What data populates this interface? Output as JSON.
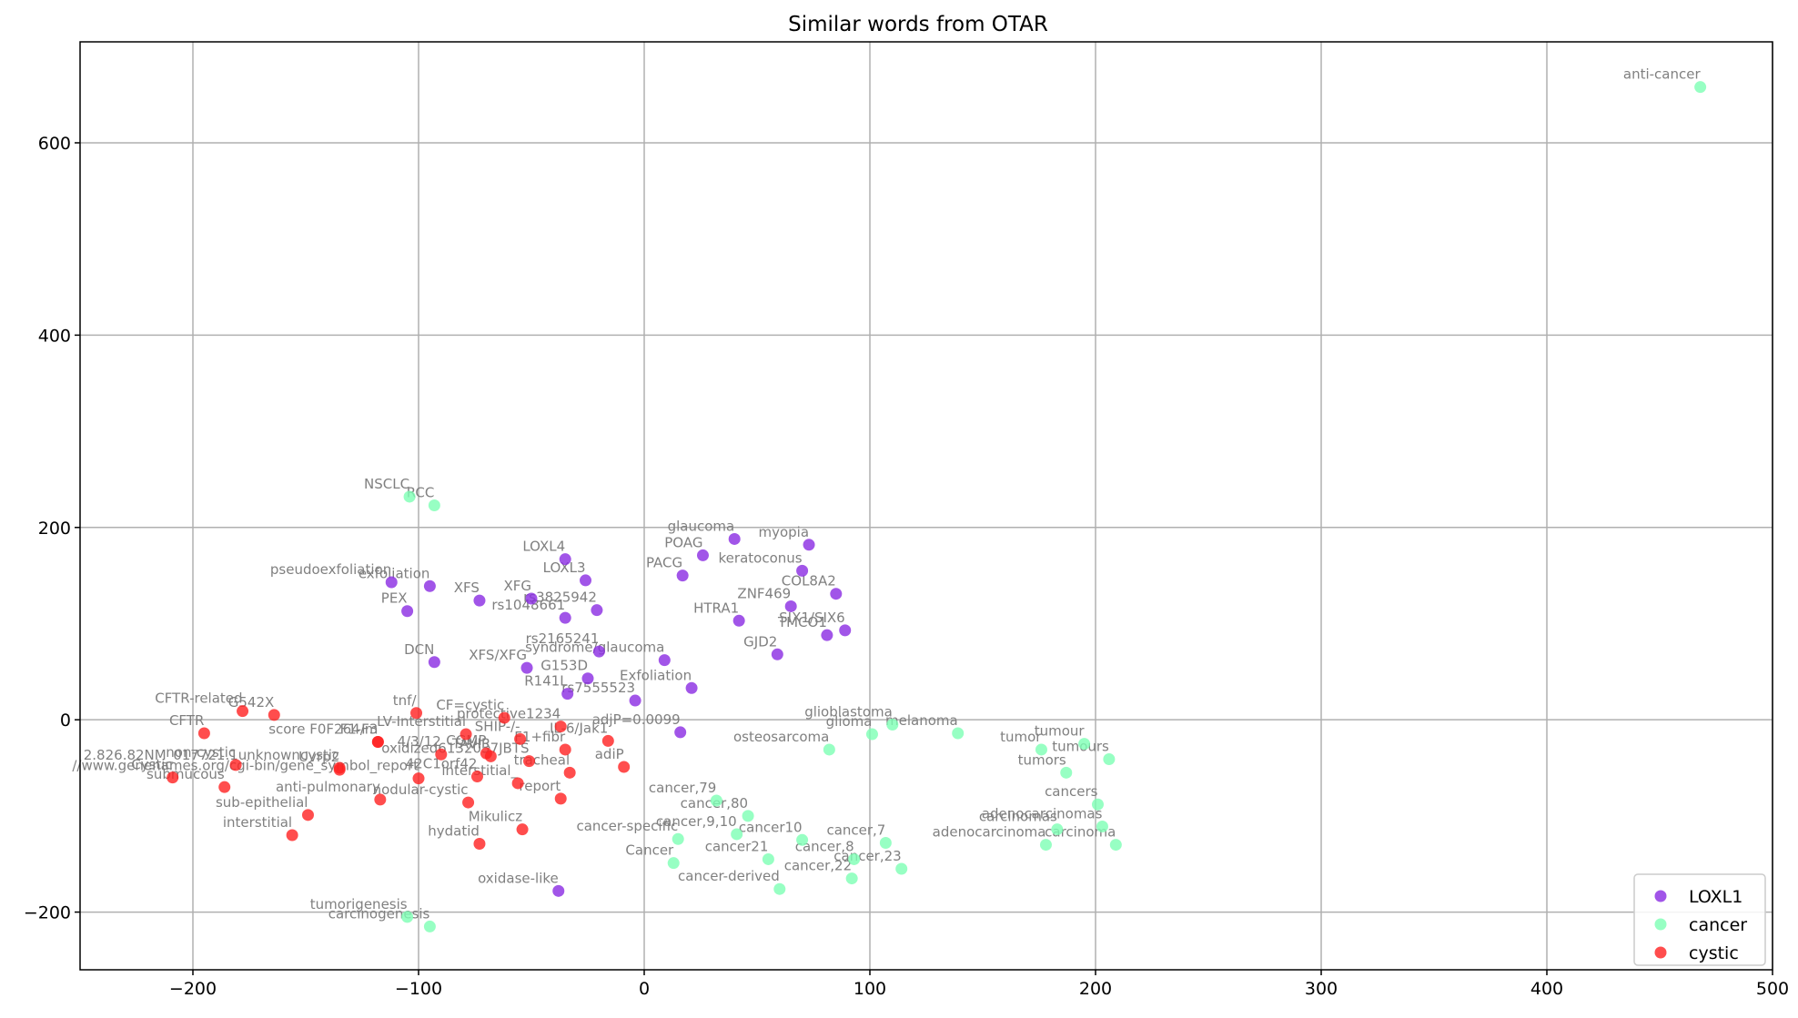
{
  "chart_data": {
    "type": "scatter",
    "title": "Similar words from OTAR",
    "xlabel": "",
    "ylabel": "",
    "xlim": [
      -250,
      500
    ],
    "ylim": [
      -260,
      705
    ],
    "xticks": [
      -200,
      -100,
      0,
      100,
      200,
      300,
      400,
      500
    ],
    "yticks": [
      -200,
      0,
      200,
      400,
      600
    ],
    "grid": true,
    "legend_position": "bottom-right",
    "series": [
      {
        "name": "LOXL1",
        "color": "#8a2be2",
        "points": [
          {
            "label": "LOXL4",
            "x": -35,
            "y": 167
          },
          {
            "label": "LOXL3",
            "x": -26,
            "y": 145
          },
          {
            "label": "pseudoexfoliation",
            "x": -112,
            "y": 143
          },
          {
            "label": "exfoliation",
            "x": -95,
            "y": 139
          },
          {
            "label": "XFS",
            "x": -73,
            "y": 124
          },
          {
            "label": "XFG",
            "x": -50,
            "y": 126
          },
          {
            "label": "rs3825942",
            "x": -21,
            "y": 114
          },
          {
            "label": "rs1048661",
            "x": -35,
            "y": 106
          },
          {
            "label": "PEX",
            "x": -105,
            "y": 113
          },
          {
            "label": "glaucoma",
            "x": 40,
            "y": 188
          },
          {
            "label": "POAG",
            "x": 26,
            "y": 171
          },
          {
            "label": "myopia",
            "x": 73,
            "y": 182
          },
          {
            "label": "PACG",
            "x": 17,
            "y": 150
          },
          {
            "label": "keratoconus",
            "x": 70,
            "y": 155
          },
          {
            "label": "COL8A2",
            "x": 85,
            "y": 131
          },
          {
            "label": "ZNF469",
            "x": 65,
            "y": 118
          },
          {
            "label": "HTRA1",
            "x": 42,
            "y": 103
          },
          {
            "label": "SIX1/SIX6",
            "x": 89,
            "y": 93
          },
          {
            "label": "TMCO1",
            "x": 81,
            "y": 88
          },
          {
            "label": "GJD2",
            "x": 59,
            "y": 68
          },
          {
            "label": "rs2165241",
            "x": -20,
            "y": 71
          },
          {
            "label": "syndrome/glaucoma",
            "x": 9,
            "y": 62
          },
          {
            "label": "DCN",
            "x": -93,
            "y": 60
          },
          {
            "label": "XFS/XFG",
            "x": -52,
            "y": 54
          },
          {
            "label": "G153D",
            "x": -25,
            "y": 43
          },
          {
            "label": "Exfoliation",
            "x": 21,
            "y": 33
          },
          {
            "label": "R141L",
            "x": -34,
            "y": 27
          },
          {
            "label": "rs7555523",
            "x": -4,
            "y": 20
          },
          {
            "label": "adjP=0.0099",
            "x": 16,
            "y": -13
          },
          {
            "label": "oxidase-like",
            "x": -38,
            "y": -178
          }
        ]
      },
      {
        "name": "cancer",
        "color": "#7dffb4",
        "points": [
          {
            "label": "anti-cancer",
            "x": 468,
            "y": 658
          },
          {
            "label": "NSCLC",
            "x": -104,
            "y": 232
          },
          {
            "label": "RCC",
            "x": -93,
            "y": 223
          },
          {
            "label": "glioblastoma",
            "x": 110,
            "y": -5
          },
          {
            "label": "glioma",
            "x": 101,
            "y": -15
          },
          {
            "label": "melanoma",
            "x": 139,
            "y": -14
          },
          {
            "label": "osteosarcoma",
            "x": 82,
            "y": -31
          },
          {
            "label": "tumor",
            "x": 176,
            "y": -31
          },
          {
            "label": "tumour",
            "x": 195,
            "y": -25
          },
          {
            "label": "tumours",
            "x": 206,
            "y": -41
          },
          {
            "label": "tumors",
            "x": 187,
            "y": -55
          },
          {
            "label": "cancers",
            "x": 201,
            "y": -88
          },
          {
            "label": "carcinomas",
            "x": 183,
            "y": -114
          },
          {
            "label": "adenocarcinomas",
            "x": 203,
            "y": -111
          },
          {
            "label": "adenocarcinoma",
            "x": 178,
            "y": -130
          },
          {
            "label": "carcinoma",
            "x": 209,
            "y": -130
          },
          {
            "label": "cancer,79",
            "x": 32,
            "y": -84
          },
          {
            "label": "cancer,80",
            "x": 46,
            "y": -100
          },
          {
            "label": "cancer-specific",
            "x": 15,
            "y": -124
          },
          {
            "label": "cancer,9,10",
            "x": 41,
            "y": -119
          },
          {
            "label": "cancer10",
            "x": 70,
            "y": -125
          },
          {
            "label": "cancer,7",
            "x": 107,
            "y": -128
          },
          {
            "label": "cancer21",
            "x": 55,
            "y": -145
          },
          {
            "label": "cancer,8",
            "x": 93,
            "y": -145
          },
          {
            "label": "Cancer",
            "x": 13,
            "y": -149
          },
          {
            "label": "cancer,22",
            "x": 92,
            "y": -165
          },
          {
            "label": "cancer,23",
            "x": 114,
            "y": -155
          },
          {
            "label": "cancer-derived",
            "x": 60,
            "y": -176
          },
          {
            "label": "tumorigenesis",
            "x": -105,
            "y": -205
          },
          {
            "label": "carcinogenesis",
            "x": -95,
            "y": -215
          }
        ]
      },
      {
        "name": "cystic",
        "color": "#ff2020",
        "points": [
          {
            "label": "CFTR-related",
            "x": -178,
            "y": 9
          },
          {
            "label": "G542X",
            "x": -164,
            "y": 5
          },
          {
            "label": "CFTR",
            "x": -195,
            "y": -14
          },
          {
            "label": "tnf/",
            "x": -101,
            "y": 7
          },
          {
            "label": "CF=cystic",
            "x": -62,
            "y": 2
          },
          {
            "label": "protective1234",
            "x": -37,
            "y": -7
          },
          {
            "label": "score F0F264/m",
            "x": -118,
            "y": -23
          },
          {
            "label": "LV-Interstitial",
            "x": -79,
            "y": -15
          },
          {
            "label": "F1-F3",
            "x": -118,
            "y": -23
          },
          {
            "label": "SHIP-/-",
            "x": -55,
            "y": -20
          },
          {
            "label": "IL-6/Jak1",
            "x": -16,
            "y": -22
          },
          {
            "label": "4/3/12",
            "x": -90,
            "y": -36
          },
          {
            "label": "CGMP",
            "x": -70,
            "y": -35
          },
          {
            "label": "TAVIR",
            "x": -68,
            "y": -38
          },
          {
            "label": "F1+fibr",
            "x": -35,
            "y": -31
          },
          {
            "label": "oxidized6132037JBTS",
            "x": -51,
            "y": -43
          },
          {
            "label": "non-cystic",
            "x": -181,
            "y": -47
          },
          {
            "label": "2.826.82NM_017721.1unknowncystic",
            "x": -135,
            "y": -50
          },
          {
            "label": "Uvrp2",
            "x": -135,
            "y": -52
          },
          {
            "label": "tracheal",
            "x": -33,
            "y": -55
          },
          {
            "label": "adiP",
            "x": -9,
            "y": -49
          },
          {
            "label": "Cystic",
            "x": -209,
            "y": -60
          },
          {
            "label": "submucous",
            "x": -186,
            "y": -70
          },
          {
            "label": "//www.genenames.org/cgi-bin/gene_symbol_report",
            "x": -100,
            "y": -61
          },
          {
            "label": "42C1orf42",
            "x": -74,
            "y": -59
          },
          {
            "label": "anti-pulmonary",
            "x": -117,
            "y": -83
          },
          {
            "label": "nodular-cystic",
            "x": -78,
            "y": -86
          },
          {
            "label": "interstitial_",
            "x": -56,
            "y": -66
          },
          {
            "label": "report",
            "x": -37,
            "y": -82
          },
          {
            "label": "sub-epithelial",
            "x": -149,
            "y": -99
          },
          {
            "label": "interstitial",
            "x": -156,
            "y": -120
          },
          {
            "label": "hydatid",
            "x": -73,
            "y": -129
          },
          {
            "label": "Mikulicz",
            "x": -54,
            "y": -114
          }
        ]
      }
    ]
  }
}
